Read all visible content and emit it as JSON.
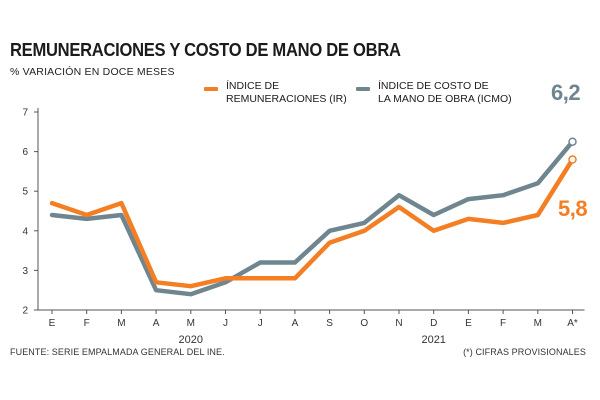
{
  "chart_data": {
    "type": "line",
    "title": "REMUNERACIONES Y COSTO DE MANO DE OBRA",
    "ylabel": "% VARIACIÓN EN DOCE MESES",
    "ylim": [
      2,
      7
    ],
    "yticks": [
      "2",
      "3",
      "4",
      "5",
      "6",
      "7"
    ],
    "categories": [
      "E",
      "F",
      "M",
      "A",
      "M",
      "J",
      "J",
      "A",
      "S",
      "O",
      "N",
      "D",
      "E",
      "F",
      "M",
      "A*"
    ],
    "year_labels": [
      {
        "label": "2020",
        "center_index": 4
      },
      {
        "label": "2021",
        "center_index": 11
      }
    ],
    "series": [
      {
        "name": "ÍNDICE DE REMUNERACIONES (IR)",
        "name_lines": [
          "ÍNDICE DE",
          "REMUNERACIONES (IR)"
        ],
        "color": "#f47e23",
        "values": [
          4.7,
          4.4,
          4.7,
          2.7,
          2.6,
          2.8,
          2.8,
          2.8,
          3.7,
          4.0,
          4.6,
          4.0,
          4.3,
          4.2,
          4.4,
          5.8
        ],
        "last_label": "5,8"
      },
      {
        "name": "ÍNDICE DE COSTO DE LA MANO DE OBRA (ICMO)",
        "name_lines": [
          "ÍNDICE DE COSTO DE",
          "LA MANO DE OBRA (ICMO)"
        ],
        "color": "#6f8590",
        "values": [
          4.4,
          4.3,
          4.4,
          2.5,
          2.4,
          2.7,
          3.2,
          3.2,
          4.0,
          4.2,
          4.9,
          4.4,
          4.8,
          4.9,
          5.2,
          6.25
        ],
        "last_label": "6,2"
      }
    ],
    "grid": false
  },
  "source": "FUENTE: SERIE EMPALMADA GENERAL DEL INE.",
  "note": "(*) CIFRAS PROVISIONALES"
}
